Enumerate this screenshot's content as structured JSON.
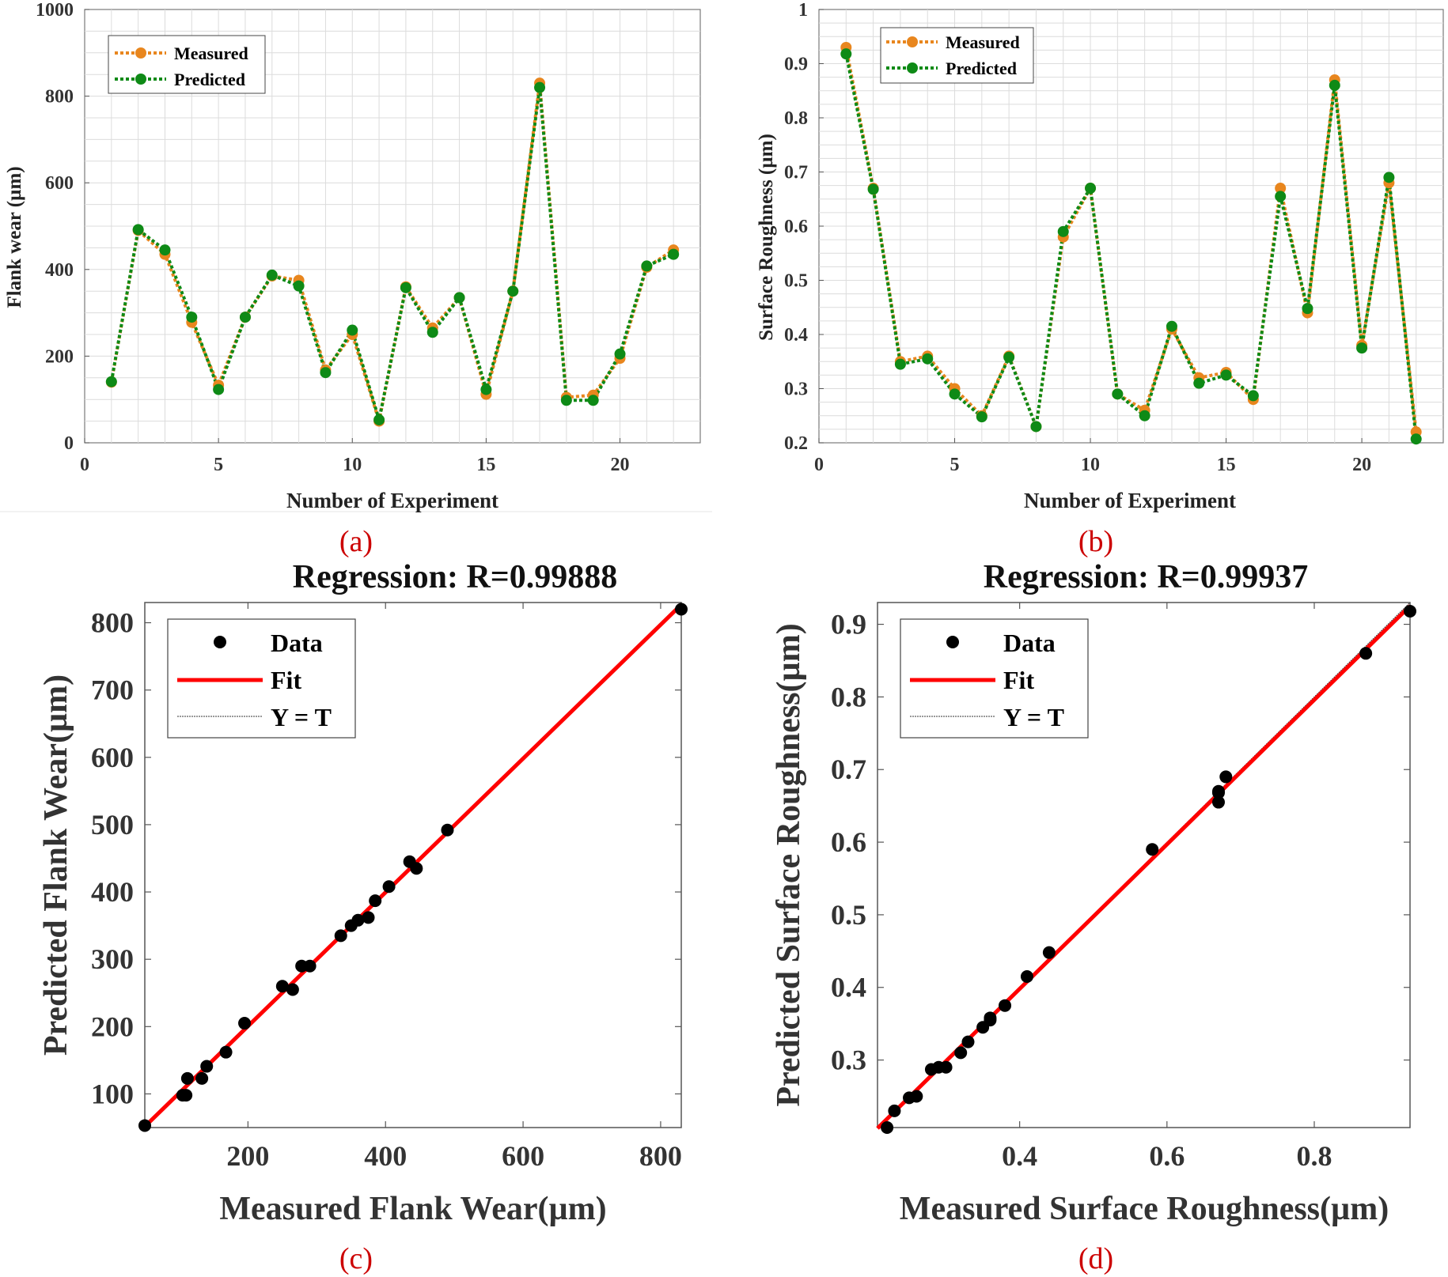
{
  "figure": {
    "panel_labels": [
      "(a)",
      "(b)",
      "(c)",
      "(d)"
    ],
    "colors": {
      "measured": "#E8861E",
      "predicted": "#0E8A16",
      "fit": "#FF0000",
      "data_point": "#000000",
      "panel_label": "#CC0000",
      "grid": "#DCDCDC"
    }
  },
  "chart_data": [
    {
      "id": "a",
      "type": "line",
      "title": "",
      "xlabel": "Number of Experiment",
      "ylabel": "Flank wear (µm)",
      "xlim": [
        0,
        23
      ],
      "ylim": [
        0,
        1000
      ],
      "xticks": [
        0,
        5,
        10,
        15,
        20
      ],
      "yticks": [
        0,
        200,
        400,
        600,
        800,
        1000
      ],
      "grid": true,
      "legend_position": "top-left",
      "x": [
        1,
        2,
        3,
        4,
        5,
        6,
        7,
        8,
        9,
        10,
        11,
        12,
        13,
        14,
        15,
        16,
        17,
        18,
        19,
        20,
        21,
        22
      ],
      "series": [
        {
          "name": "Measured",
          "style": "dotted-marker",
          "values": [
            140,
            490,
            435,
            278,
            133,
            290,
            385,
            375,
            168,
            250,
            50,
            360,
            265,
            335,
            112,
            350,
            830,
            105,
            110,
            195,
            405,
            445
          ]
        },
        {
          "name": "Predicted",
          "style": "dotted-marker",
          "values": [
            141,
            492,
            445,
            290,
            123,
            290,
            387,
            362,
            162,
            260,
            53,
            358,
            255,
            335,
            123,
            350,
            820,
            98,
            98,
            205,
            408,
            435
          ]
        }
      ]
    },
    {
      "id": "b",
      "type": "line",
      "title": "",
      "xlabel": "Number of Experiment",
      "ylabel": "Surface Roughness (µm)",
      "xlim": [
        0,
        23
      ],
      "ylim": [
        0.2,
        1
      ],
      "xticks": [
        0,
        5,
        10,
        15,
        20
      ],
      "yticks": [
        0.2,
        0.3,
        0.4,
        0.5,
        0.6,
        0.7,
        0.8,
        0.9,
        1
      ],
      "ytick_labels": [
        "0.2",
        "0.3",
        "0.4",
        "0.5",
        "0.6",
        "0.7",
        "0.8",
        "0.9",
        "1"
      ],
      "grid": true,
      "legend_position": "top-left",
      "x": [
        1,
        2,
        3,
        4,
        5,
        6,
        7,
        8,
        9,
        10,
        11,
        12,
        13,
        14,
        15,
        16,
        17,
        18,
        19,
        20,
        21,
        22
      ],
      "series": [
        {
          "name": "Measured",
          "style": "dotted-marker",
          "values": [
            0.93,
            0.67,
            0.35,
            0.36,
            0.3,
            0.25,
            0.36,
            0.23,
            0.58,
            0.67,
            0.29,
            0.26,
            0.41,
            0.32,
            0.33,
            0.28,
            0.67,
            0.44,
            0.87,
            0.38,
            0.68,
            0.22
          ]
        },
        {
          "name": "Predicted",
          "style": "dotted-marker",
          "values": [
            0.918,
            0.668,
            0.345,
            0.355,
            0.29,
            0.248,
            0.358,
            0.23,
            0.59,
            0.67,
            0.29,
            0.25,
            0.415,
            0.31,
            0.325,
            0.287,
            0.655,
            0.448,
            0.86,
            0.375,
            0.69,
            0.207
          ]
        }
      ]
    },
    {
      "id": "c",
      "type": "scatter",
      "title": "Regression: R=0.99888",
      "xlabel": "Measured Flank Wear(µm)",
      "ylabel": "Predicted Flank Wear(µm)",
      "xlim": [
        50,
        830
      ],
      "ylim": [
        50,
        830
      ],
      "xticks": [
        200,
        400,
        600,
        800
      ],
      "yticks": [
        100,
        200,
        300,
        400,
        500,
        600,
        700,
        800
      ],
      "grid": false,
      "legend_position": "top-left",
      "legend": [
        "Data",
        "Fit",
        "Y = T"
      ],
      "fit": {
        "slope": 0.994,
        "intercept": 1.8
      },
      "x": [
        140,
        490,
        435,
        278,
        133,
        290,
        385,
        375,
        168,
        250,
        50,
        360,
        265,
        335,
        112,
        350,
        830,
        105,
        110,
        195,
        405,
        445
      ],
      "y": [
        141,
        492,
        445,
        290,
        123,
        290,
        387,
        362,
        162,
        260,
        53,
        358,
        255,
        335,
        123,
        350,
        820,
        98,
        98,
        205,
        408,
        435
      ]
    },
    {
      "id": "d",
      "type": "scatter",
      "title": "Regression: R=0.99937",
      "xlabel": "Measured Surface Roughness(µm)",
      "ylabel": "Predicted Surface Roughness(µm)",
      "xlim": [
        0.207,
        0.93
      ],
      "ylim": [
        0.207,
        0.93
      ],
      "xticks": [
        0.4,
        0.6,
        0.8
      ],
      "yticks": [
        0.3,
        0.4,
        0.5,
        0.6,
        0.7,
        0.8,
        0.9
      ],
      "grid": false,
      "legend_position": "top-left",
      "legend": [
        "Data",
        "Fit",
        "Y = T"
      ],
      "fit": {
        "slope": 0.995,
        "intercept": 0.0
      },
      "x": [
        0.93,
        0.67,
        0.35,
        0.36,
        0.3,
        0.25,
        0.36,
        0.23,
        0.58,
        0.67,
        0.29,
        0.26,
        0.41,
        0.32,
        0.33,
        0.28,
        0.67,
        0.44,
        0.87,
        0.38,
        0.68,
        0.22
      ],
      "y": [
        0.918,
        0.668,
        0.345,
        0.355,
        0.29,
        0.248,
        0.358,
        0.23,
        0.59,
        0.67,
        0.29,
        0.25,
        0.415,
        0.31,
        0.325,
        0.287,
        0.655,
        0.448,
        0.86,
        0.375,
        0.69,
        0.207
      ]
    }
  ]
}
